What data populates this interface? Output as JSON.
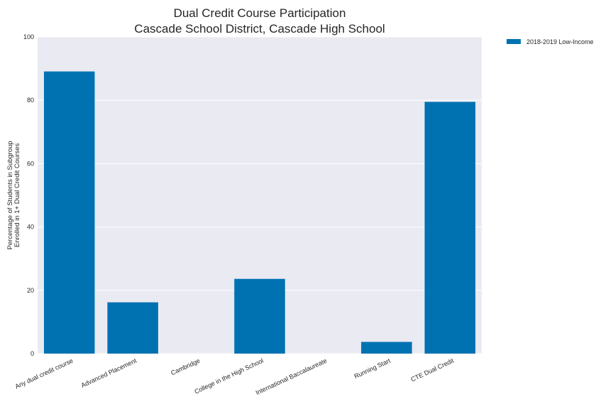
{
  "chart_data": {
    "type": "bar",
    "title": [
      "Dual Credit Course Participation",
      "Cascade School District, Cascade High School"
    ],
    "ylabel": [
      "Percentage of Students in Subgroup",
      "Enrolled in 1+ Dual Credit Courses"
    ],
    "xlabel": "",
    "categories": [
      "Any dual credit course",
      "Advanced Placement",
      "Cambridge",
      "College in the High School",
      "International Baccalaureate",
      "Running Start",
      "CTE Dual Credit"
    ],
    "series": [
      {
        "name": "2018-2019 Low-Income",
        "color": "#0072b2",
        "values": [
          89.1,
          16.2,
          0,
          23.6,
          0,
          3.7,
          79.5
        ]
      }
    ],
    "ylim": [
      0,
      100
    ],
    "yticks": [
      0,
      20,
      40,
      60,
      80,
      100
    ],
    "grid": true,
    "legend_position": "outside-top-right",
    "background_color": "#eaeaf2"
  }
}
